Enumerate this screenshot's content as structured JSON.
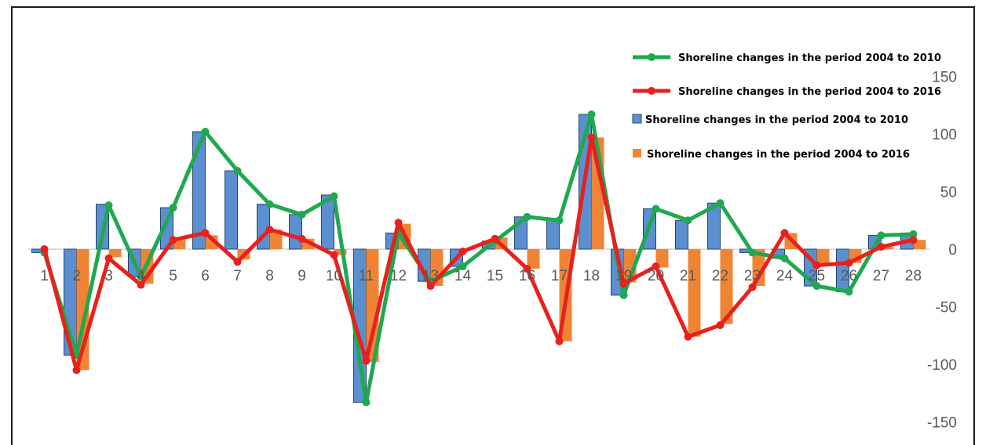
{
  "chart_data": {
    "type": "bar",
    "categories": [
      "1",
      "2",
      "3",
      "4",
      "5",
      "6",
      "7",
      "8",
      "9",
      "10",
      "11",
      "12",
      "13",
      "14",
      "15",
      "16",
      "17",
      "18",
      "19",
      "20",
      "21",
      "22",
      "23",
      "24",
      "25",
      "26",
      "27",
      "28"
    ],
    "series": [
      {
        "name": "Shoreline changes in the period 2004 to 2010",
        "kind": "bar",
        "color": "#5b8fd0",
        "values": [
          -3,
          -92,
          39,
          -24,
          36,
          102,
          68,
          39,
          30,
          47,
          -133,
          14,
          -28,
          -15,
          7,
          28,
          25,
          117,
          -40,
          35,
          25,
          40,
          -3,
          -8,
          -32,
          -37,
          12,
          13
        ]
      },
      {
        "name": "Shoreline changes in the period 2004 to 2016",
        "kind": "bar",
        "color": "#ef8434",
        "values": [
          0,
          -105,
          -7,
          -30,
          8,
          12,
          -9,
          17,
          9,
          -5,
          -98,
          22,
          -32,
          0,
          10,
          -17,
          -80,
          97,
          -29,
          -16,
          -76,
          -65,
          -32,
          14,
          -14,
          -12,
          2,
          8
        ]
      },
      {
        "name": "Shoreline changes in the period 2004 to 2010",
        "kind": "line",
        "color": "#1fa84f",
        "values": [
          -3,
          -92,
          38,
          -24,
          36,
          102,
          68,
          39,
          30,
          46,
          -133,
          14,
          -28,
          -15,
          7,
          28,
          25,
          117,
          -40,
          35,
          25,
          40,
          -3,
          -8,
          -32,
          -37,
          12,
          13
        ]
      },
      {
        "name": "Shoreline changes in the period 2004 to 2016",
        "kind": "line",
        "color": "#e8201e",
        "values": [
          0,
          -105,
          -8,
          -31,
          8,
          14,
          -11,
          17,
          9,
          -5,
          -97,
          23,
          -32,
          -2,
          9,
          -17,
          -80,
          97,
          -30,
          -15,
          -76,
          -66,
          -33,
          14,
          -14,
          -12,
          2,
          8
        ]
      }
    ],
    "y_ticks": [
      "150",
      "100",
      "50",
      "0",
      "-50",
      "-100",
      "-150"
    ],
    "ylim": [
      -150,
      150
    ],
    "grid": false,
    "legend_position": "top-right"
  }
}
